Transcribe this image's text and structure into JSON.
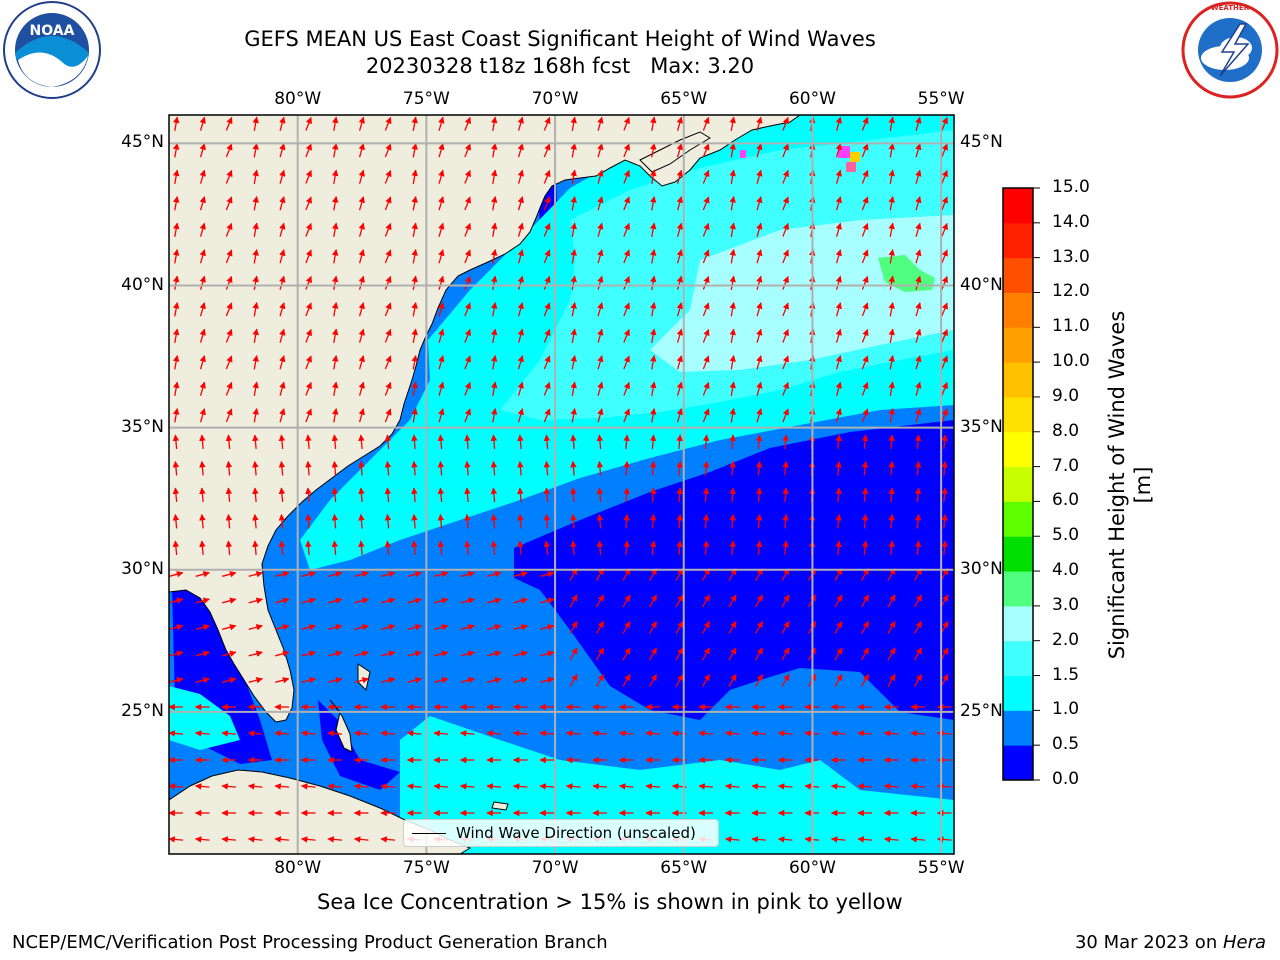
{
  "title": {
    "line1": "GEFS MEAN US East Coast Significant Height of Wind Waves",
    "line2": "20230328 t18z 168h fcst   Max: 3.20"
  },
  "logos": {
    "noaa": "NOAA",
    "nws_ring_text": "NATIONAL WEATHER SERVICE",
    "noaa_ring_text": "NATIONAL OCEANIC AND ATMOSPHERIC ADMINISTRATION U.S. DEPARTMENT OF COMMERCE"
  },
  "map": {
    "lon_labels": [
      "80°W",
      "75°W",
      "70°W",
      "65°W",
      "60°W",
      "55°W"
    ],
    "lat_labels": [
      "45°N",
      "40°N",
      "35°N",
      "30°N",
      "25°N"
    ],
    "lon_values": [
      -80,
      -75,
      -70,
      -65,
      -60,
      -55
    ],
    "lat_values": [
      45,
      40,
      35,
      30,
      25
    ],
    "extent": {
      "lon_min": -85,
      "lon_max": -54.5,
      "lat_min": 20,
      "lat_max": 46
    },
    "land_color": "#efedde",
    "grid_color": "#b0b0b0",
    "arrow_color": "#ff0000",
    "legend_label": "Wind Wave Direction (unscaled)"
  },
  "colorbar": {
    "title": "Significant Height of Wind Waves [m]",
    "ticks": [
      "0.0",
      "0.5",
      "1.0",
      "1.5",
      "2.0",
      "3.0",
      "4.0",
      "5.0",
      "6.0",
      "7.0",
      "8.0",
      "9.0",
      "10.0",
      "11.0",
      "12.0",
      "13.0",
      "14.0",
      "15.0"
    ],
    "colors": [
      "#0000ff",
      "#0080ff",
      "#00ffff",
      "#40ffff",
      "#a8ffff",
      "#50ff80",
      "#00e000",
      "#60ff00",
      "#c8ff00",
      "#ffff00",
      "#ffe000",
      "#ffc000",
      "#ffa000",
      "#ff8000",
      "#ff5000",
      "#ff2000",
      "#ff0000"
    ]
  },
  "subnote": "Sea Ice Concentration > 15% is shown in pink to yellow",
  "footer": {
    "left": "NCEP/EMC/Verification Post Processing Product Generation Branch",
    "date": "30 Mar 2023 on ",
    "host": "Hera"
  }
}
